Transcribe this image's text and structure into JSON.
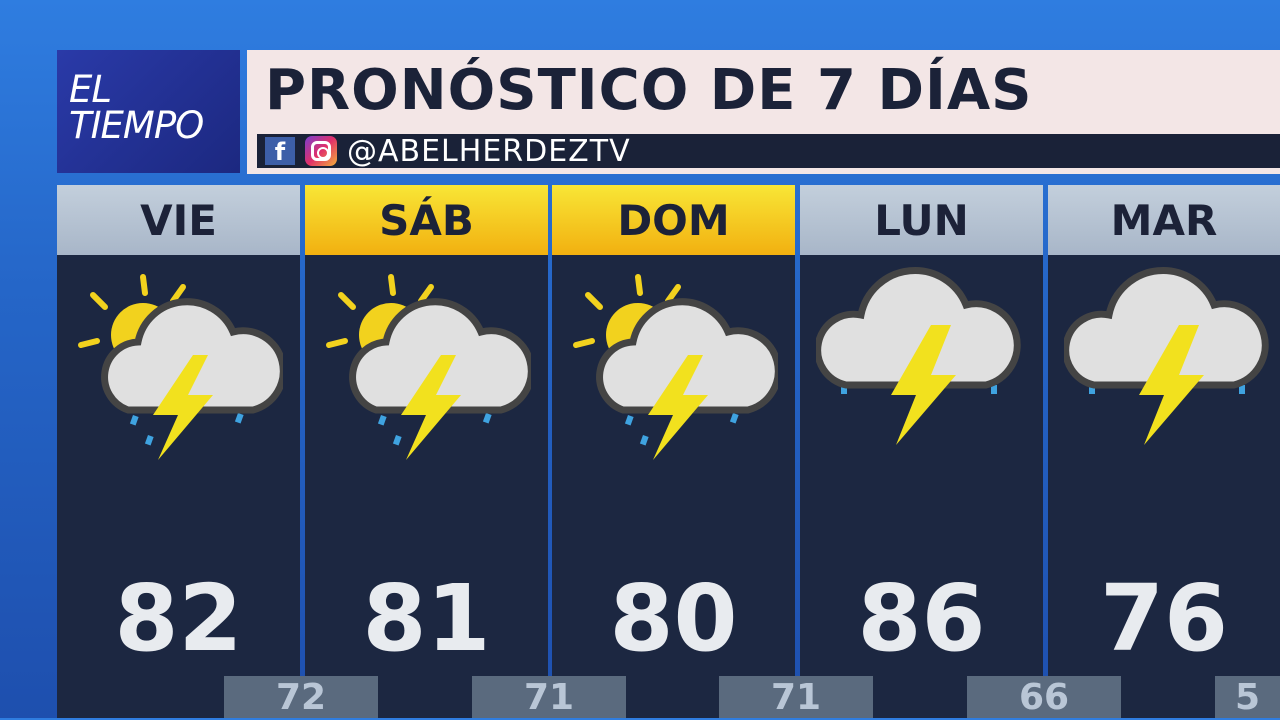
{
  "logo": {
    "line1": "EL",
    "line2": "TIEMPO"
  },
  "header": {
    "title": "PRONÓSTICO DE 7 DÍAS",
    "social_icons": [
      "facebook-icon",
      "instagram-icon"
    ],
    "facebook_glyph": "f",
    "handle": "@ABELHERDEZTV"
  },
  "colors": {
    "weekday_header": "#b4c1d1",
    "weekend_header": "#f5cc20",
    "panel": "#1c2741",
    "low_box": "#5a6a7e"
  },
  "days": [
    {
      "label": "VIE",
      "icon": "partly-sunny-thunderstorm-icon",
      "high": "82",
      "low": "72",
      "weekend": false
    },
    {
      "label": "SÁB",
      "icon": "partly-sunny-thunderstorm-icon",
      "high": "81",
      "low": "71",
      "weekend": true
    },
    {
      "label": "DOM",
      "icon": "partly-sunny-thunderstorm-icon",
      "high": "80",
      "low": "71",
      "weekend": true
    },
    {
      "label": "LUN",
      "icon": "thunderstorm-icon",
      "high": "86",
      "low": "66",
      "weekend": false
    },
    {
      "label": "MAR",
      "icon": "thunderstorm-icon",
      "high": "76",
      "low": "5",
      "weekend": false
    }
  ]
}
